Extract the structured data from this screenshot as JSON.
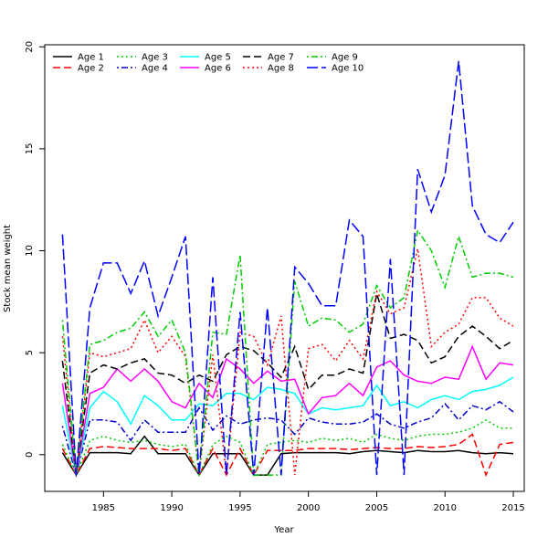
{
  "chart_data": {
    "type": "line",
    "title": "",
    "xlabel": "Year",
    "ylabel": "Stock mean weight",
    "xlim": [
      1982,
      2015
    ],
    "ylim": [
      -1.2,
      20
    ],
    "xticks": [
      1985,
      1990,
      1995,
      2000,
      2005,
      2010,
      2015
    ],
    "yticks": [
      0,
      5,
      10,
      15,
      20
    ],
    "grid": false,
    "legend": "top-left",
    "x": [
      1982,
      1983,
      1984,
      1985,
      1986,
      1987,
      1988,
      1989,
      1990,
      1991,
      1992,
      1993,
      1994,
      1995,
      1996,
      1997,
      1998,
      1999,
      2000,
      2001,
      2002,
      2003,
      2004,
      2005,
      2006,
      2007,
      2008,
      2009,
      2010,
      2011,
      2012,
      2013,
      2014,
      2015
    ],
    "series": [
      {
        "name": "Age 1",
        "color": "#000000",
        "dash": "solid",
        "values": [
          0.1,
          -1,
          0.1,
          0.1,
          0.1,
          0.05,
          0.9,
          0.05,
          0.05,
          0.05,
          -1,
          0.05,
          0.05,
          0.05,
          -1,
          -1,
          0.05,
          0.1,
          0.1,
          0.1,
          0.1,
          0.05,
          0.15,
          0.2,
          0.15,
          0.1,
          0.2,
          0.15,
          0.15,
          0.2,
          0.1,
          0.05,
          0.1,
          0.05
        ]
      },
      {
        "name": "Age 2",
        "color": "#ff0000",
        "dash": "dashed",
        "values": [
          0.3,
          -1,
          0.3,
          0.4,
          0.35,
          0.3,
          0.3,
          0.3,
          0.2,
          0.3,
          -1,
          0.3,
          -1,
          0.3,
          -1,
          0.2,
          0.2,
          0.2,
          0.3,
          0.3,
          0.3,
          0.25,
          0.3,
          0.35,
          0.3,
          0.3,
          0.4,
          0.35,
          0.4,
          0.5,
          1.0,
          -1,
          0.5,
          0.6
        ]
      },
      {
        "name": "Age 3",
        "color": "#00cd00",
        "dash": "dotted",
        "values": [
          0.5,
          -1,
          0.7,
          0.9,
          0.7,
          0.6,
          0.7,
          0.5,
          0.4,
          0.5,
          -1,
          0.5,
          0.9,
          0.6,
          -1,
          0.5,
          0.6,
          0.7,
          0.6,
          0.8,
          0.7,
          0.8,
          0.6,
          1.0,
          0.8,
          0.7,
          0.9,
          1.0,
          1.0,
          1.1,
          1.3,
          1.7,
          1.3,
          1.3
        ]
      },
      {
        "name": "Age 4",
        "color": "#0000cd",
        "dash": "dashdot",
        "values": [
          1.4,
          -1,
          1.7,
          1.7,
          1.6,
          0.7,
          1.7,
          1.1,
          1.1,
          1.1,
          2.3,
          1.2,
          1.9,
          1.5,
          1.7,
          1.8,
          1.7,
          1.0,
          1.8,
          1.6,
          1.5,
          1.5,
          1.6,
          2.0,
          1.5,
          1.3,
          1.6,
          1.8,
          2.5,
          1.7,
          2.4,
          2.2,
          2.6,
          2.1
        ]
      },
      {
        "name": "Age 5",
        "color": "#00ffff",
        "dash": "solid",
        "values": [
          2.4,
          -1,
          2.3,
          3.1,
          2.6,
          1.5,
          2.9,
          2.4,
          1.7,
          1.7,
          2.5,
          2.4,
          3.0,
          3.0,
          2.7,
          3.3,
          3.2,
          3.0,
          2.0,
          2.3,
          2.2,
          2.3,
          2.4,
          3.4,
          2.4,
          2.6,
          2.3,
          2.7,
          2.9,
          2.7,
          3.1,
          3.2,
          3.4,
          3.8
        ]
      },
      {
        "name": "Age 6",
        "color": "#ff00ff",
        "dash": "solid",
        "values": [
          3.5,
          -1,
          3.0,
          3.3,
          4.2,
          3.6,
          4.2,
          3.6,
          2.6,
          2.3,
          3.5,
          2.8,
          4.7,
          4.2,
          3.5,
          4.1,
          3.6,
          3.7,
          2.0,
          2.8,
          2.9,
          3.5,
          2.9,
          4.3,
          4.6,
          3.9,
          3.6,
          3.5,
          3.8,
          3.7,
          5.3,
          3.7,
          4.5,
          4.4
        ]
      },
      {
        "name": "Age 7",
        "color": "#000000",
        "dash": "dashed",
        "values": [
          4.6,
          -1,
          4.0,
          4.4,
          4.2,
          4.5,
          4.7,
          4.0,
          3.9,
          3.5,
          3.9,
          3.6,
          4.9,
          5.3,
          5.1,
          4.5,
          3.8,
          5.3,
          3.2,
          3.9,
          3.9,
          4.2,
          4.0,
          7.9,
          5.7,
          5.9,
          5.6,
          4.5,
          4.8,
          5.8,
          6.3,
          5.8,
          5.2,
          5.6
        ]
      },
      {
        "name": "Age 8",
        "color": "#ff0000",
        "dash": "dotted",
        "values": [
          5.8,
          -1,
          5.0,
          4.8,
          5.0,
          5.2,
          6.6,
          5.0,
          5.8,
          4.8,
          -1,
          4.9,
          -1,
          6.0,
          5.8,
          4.4,
          6.8,
          -1,
          5.2,
          5.4,
          4.6,
          5.6,
          4.7,
          8.0,
          6.9,
          7.2,
          10.1,
          5.3,
          6.0,
          6.4,
          7.7,
          7.7,
          6.7,
          6.3
        ]
      },
      {
        "name": "Age 9",
        "color": "#00cd00",
        "dash": "dashdot",
        "values": [
          6.6,
          -1,
          5.4,
          5.6,
          6.0,
          6.2,
          7.0,
          5.8,
          6.6,
          5.0,
          -1,
          6.0,
          5.9,
          9.8,
          -1,
          -1,
          -1,
          8.5,
          6.3,
          6.7,
          6.6,
          6.0,
          6.4,
          8.3,
          7.2,
          7.7,
          11.0,
          10.0,
          8.2,
          10.7,
          8.7,
          8.9,
          8.9,
          8.7
        ]
      },
      {
        "name": "Age 10",
        "color": "#0000ff",
        "dash": "longdash",
        "values": [
          10.8,
          -1,
          7.2,
          9.4,
          9.4,
          7.9,
          9.5,
          6.8,
          8.7,
          10.7,
          -1,
          8.7,
          -1,
          7.0,
          -1,
          7.2,
          -1,
          9.2,
          8.4,
          7.3,
          7.3,
          11.5,
          10.7,
          -1,
          9.6,
          -1,
          14.0,
          11.9,
          13.7,
          19.3,
          12.2,
          10.8,
          10.4,
          11.4
        ]
      }
    ]
  }
}
